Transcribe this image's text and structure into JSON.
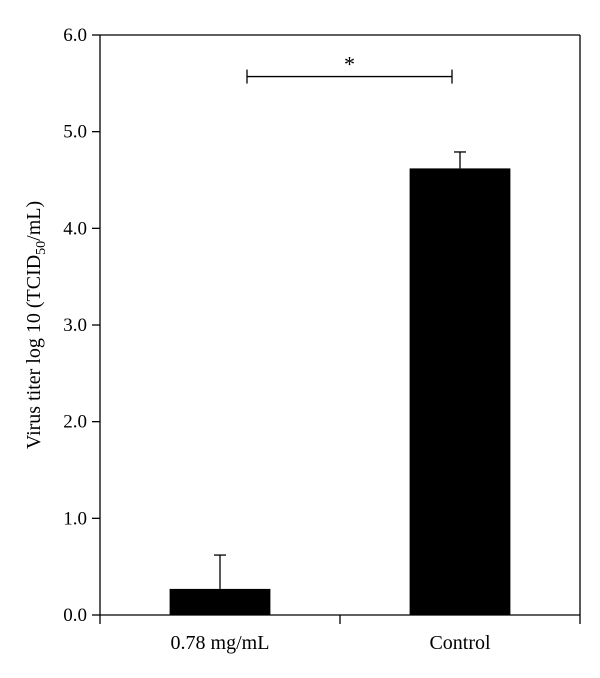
{
  "chart_data": {
    "type": "bar",
    "categories": [
      "0.78 mg/mL",
      "Control"
    ],
    "values": [
      0.27,
      4.62
    ],
    "error_upper": [
      0.35,
      0.17
    ],
    "ylim": [
      0,
      6.0
    ],
    "yticks": [
      "0.0",
      "1.0",
      "2.0",
      "3.0",
      "4.0",
      "5.0",
      "6.0"
    ],
    "ylabel": {
      "prefix": "Virus titer log 10 (TCID",
      "subscript": "50",
      "suffix": "/mL)"
    },
    "xlabel": "",
    "significance": {
      "between": [
        "0.78 mg/mL",
        "Control"
      ],
      "label": "*"
    },
    "bar_color": "#000000",
    "grid": false
  }
}
